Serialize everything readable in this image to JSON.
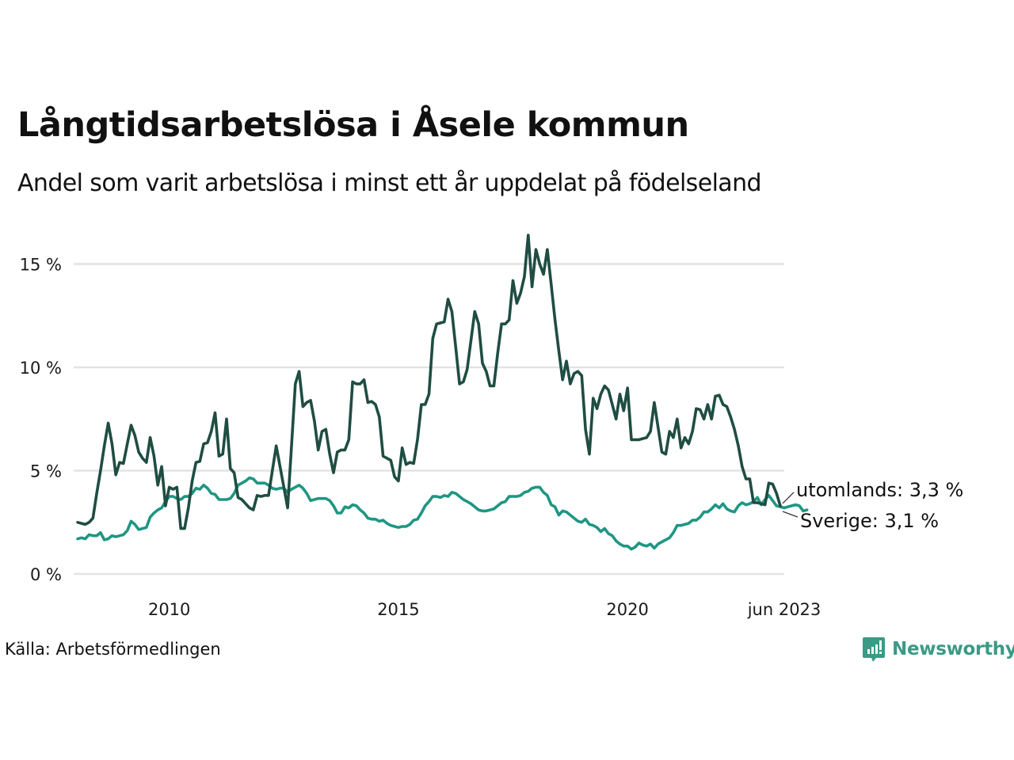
{
  "header": {
    "title": "Långtidsarbetslösa i Åsele kommun",
    "subtitle": "Andel som varit arbetslösa i minst ett år uppdelat på födelseland"
  },
  "footer": {
    "source": "Källa: Arbetsförmedlingen",
    "brand": "Newsworthy",
    "brand_icon": "bar-chart-speech-bubble-icon",
    "brand_color": "#3a9a86"
  },
  "chart_data": {
    "type": "line",
    "title": "Långtidsarbetslösa i Åsele kommun",
    "subtitle": "Andel som varit arbetslösa i minst ett år uppdelat på födelseland",
    "xlabel": "",
    "ylabel": "",
    "x_start": "2008-01",
    "x_end": "2023-06",
    "x_frequency": "monthly",
    "xlim": [
      2008.0,
      2023.42
    ],
    "ylim": [
      0,
      16.5
    ],
    "grid": "horizontal",
    "yticks": [
      {
        "value": 0,
        "label": "0 %"
      },
      {
        "value": 5,
        "label": "5 %"
      },
      {
        "value": 10,
        "label": "10 %"
      },
      {
        "value": 15,
        "label": "15 %"
      }
    ],
    "xticks": [
      {
        "value": 2010.0,
        "label": "2010"
      },
      {
        "value": 2015.0,
        "label": "2015"
      },
      {
        "value": 2020.0,
        "label": "2020"
      },
      {
        "value": 2023.42,
        "label": "jun 2023"
      }
    ],
    "series": [
      {
        "name": "utomlands",
        "color": "#1f4d42",
        "end_label": "utomlands: 3,3 %",
        "values": [
          2.5,
          2.45,
          2.4,
          2.5,
          2.7,
          3.9,
          5.0,
          6.2,
          7.3,
          6.3,
          4.8,
          5.4,
          5.35,
          6.3,
          7.2,
          6.7,
          5.9,
          5.6,
          5.4,
          6.6,
          5.7,
          4.3,
          5.2,
          3.3,
          4.2,
          4.1,
          4.2,
          2.2,
          2.2,
          3.2,
          4.5,
          5.4,
          5.45,
          6.3,
          6.35,
          6.9,
          7.8,
          5.7,
          5.8,
          7.5,
          5.1,
          4.9,
          3.7,
          3.6,
          3.4,
          3.2,
          3.1,
          3.8,
          3.75,
          3.8,
          3.8,
          5.0,
          6.2,
          5.2,
          4.2,
          3.2,
          6.2,
          9.2,
          9.8,
          8.1,
          8.3,
          8.4,
          7.4,
          6.0,
          6.9,
          7.0,
          5.8,
          4.9,
          5.9,
          6.0,
          6.0,
          6.5,
          9.3,
          9.2,
          9.2,
          9.4,
          8.3,
          8.35,
          8.2,
          7.6,
          5.7,
          5.6,
          5.5,
          4.7,
          4.5,
          6.1,
          5.3,
          5.4,
          5.35,
          6.5,
          8.2,
          8.2,
          8.7,
          11.4,
          12.1,
          12.15,
          12.2,
          13.3,
          12.7,
          11.0,
          9.2,
          9.3,
          9.9,
          11.3,
          12.7,
          12.1,
          10.2,
          9.8,
          9.1,
          9.1,
          10.7,
          12.1,
          12.1,
          12.3,
          14.2,
          13.1,
          13.6,
          14.4,
          16.4,
          13.9,
          15.7,
          15.0,
          14.5,
          15.7,
          14.0,
          12.3,
          10.8,
          9.4,
          10.3,
          9.2,
          9.7,
          9.8,
          9.6,
          7.0,
          5.8,
          8.5,
          8.0,
          8.7,
          9.1,
          8.9,
          8.2,
          7.5,
          8.7,
          7.9,
          9.0,
          6.5,
          6.5,
          6.5,
          6.55,
          6.6,
          6.9,
          8.3,
          7.1,
          5.9,
          5.8,
          6.9,
          6.6,
          7.5,
          6.1,
          6.6,
          6.3,
          6.9,
          8.0,
          7.95,
          7.5,
          8.2,
          7.5,
          8.6,
          8.65,
          8.2,
          8.1,
          7.6,
          7.0,
          6.2,
          5.2,
          4.6,
          4.6,
          3.45,
          3.45,
          3.4,
          3.35,
          4.4,
          4.35,
          3.9,
          3.3
        ]
      },
      {
        "name": "Sverige",
        "color": "#1f9683",
        "end_label": "Sverige: 3,1 %",
        "values": [
          1.7,
          1.75,
          1.7,
          1.9,
          1.85,
          1.85,
          2.0,
          1.65,
          1.7,
          1.85,
          1.8,
          1.85,
          1.9,
          2.1,
          2.55,
          2.4,
          2.15,
          2.2,
          2.25,
          2.75,
          2.95,
          3.1,
          3.2,
          3.5,
          3.75,
          3.75,
          3.65,
          3.6,
          3.75,
          3.75,
          3.9,
          4.15,
          4.1,
          4.3,
          4.15,
          3.9,
          3.85,
          3.6,
          3.6,
          3.6,
          3.65,
          3.9,
          4.3,
          4.4,
          4.5,
          4.65,
          4.6,
          4.4,
          4.4,
          4.4,
          4.3,
          4.15,
          4.1,
          4.15,
          4.15,
          3.95,
          4.1,
          4.2,
          4.3,
          4.15,
          3.9,
          3.55,
          3.6,
          3.65,
          3.65,
          3.65,
          3.55,
          3.3,
          2.95,
          2.95,
          3.25,
          3.2,
          3.35,
          3.3,
          3.1,
          2.95,
          2.7,
          2.65,
          2.65,
          2.55,
          2.6,
          2.45,
          2.35,
          2.3,
          2.25,
          2.3,
          2.3,
          2.4,
          2.6,
          2.65,
          2.95,
          3.3,
          3.5,
          3.75,
          3.75,
          3.7,
          3.8,
          3.75,
          3.95,
          3.9,
          3.75,
          3.6,
          3.5,
          3.4,
          3.25,
          3.1,
          3.05,
          3.05,
          3.1,
          3.15,
          3.3,
          3.45,
          3.5,
          3.75,
          3.75,
          3.75,
          3.8,
          3.95,
          4.0,
          4.15,
          4.2,
          4.2,
          3.95,
          3.8,
          3.35,
          3.25,
          2.85,
          3.05,
          3.0,
          2.85,
          2.7,
          2.55,
          2.5,
          2.65,
          2.4,
          2.35,
          2.25,
          2.05,
          2.2,
          1.95,
          1.85,
          1.6,
          1.45,
          1.35,
          1.35,
          1.2,
          1.3,
          1.5,
          1.4,
          1.35,
          1.45,
          1.25,
          1.45,
          1.55,
          1.65,
          1.75,
          2.0,
          2.35,
          2.35,
          2.4,
          2.45,
          2.6,
          2.6,
          2.75,
          3.0,
          3.0,
          3.15,
          3.35,
          3.2,
          3.4,
          3.15,
          3.05,
          3.0,
          3.3,
          3.45,
          3.35,
          3.4,
          3.5,
          3.7,
          3.35,
          3.6,
          3.8,
          3.55,
          3.3,
          3.25,
          3.2,
          3.25,
          3.3,
          3.35,
          3.3,
          3.05,
          3.1
        ]
      }
    ]
  }
}
